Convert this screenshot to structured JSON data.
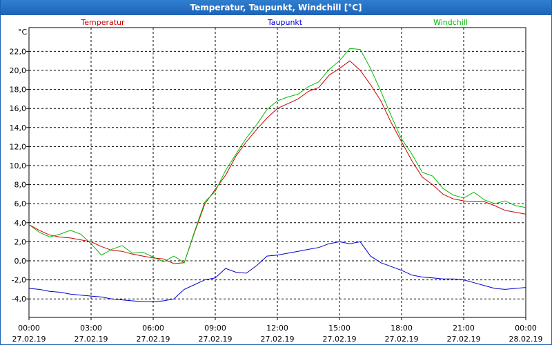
{
  "window": {
    "title": "Temperatur, Taupunkt, Windchill [°C]"
  },
  "chart_data": {
    "type": "line",
    "title": "Temperatur, Taupunkt, Windchill [°C]",
    "ylabel": "°C",
    "ylim": [
      -6,
      24
    ],
    "y_ticks": [
      "22,0",
      "20,0",
      "18,0",
      "16,0",
      "14,0",
      "12,0",
      "10,0",
      "8,0",
      "6,0",
      "4,0",
      "2,0",
      "0,0",
      "-2,0",
      "-4,0"
    ],
    "x_ticks": [
      {
        "time": "00:00",
        "date": "27.02.19"
      },
      {
        "time": "03:00",
        "date": "27.02.19"
      },
      {
        "time": "06:00",
        "date": "27.02.19"
      },
      {
        "time": "09:00",
        "date": "27.02.19"
      },
      {
        "time": "12:00",
        "date": "27.02.19"
      },
      {
        "time": "15:00",
        "date": "27.02.19"
      },
      {
        "time": "18:00",
        "date": "27.02.19"
      },
      {
        "time": "21:00",
        "date": "27.02.19"
      },
      {
        "time": "00:00",
        "date": "28.02.19"
      }
    ],
    "grid": true,
    "x_hours": [
      0,
      0.5,
      1,
      1.5,
      2,
      2.5,
      3,
      3.5,
      4,
      4.5,
      5,
      5.5,
      6,
      6.5,
      7,
      7.5,
      8,
      8.5,
      9,
      9.5,
      10,
      10.5,
      11,
      11.5,
      12,
      12.5,
      13,
      13.5,
      14,
      14.5,
      15,
      15.5,
      16,
      16.5,
      17,
      17.5,
      18,
      18.5,
      19,
      19.5,
      20,
      20.5,
      21,
      21.5,
      22,
      22.5,
      23,
      23.5,
      24
    ],
    "series": [
      {
        "name": "Temperatur",
        "color": "#cc0000",
        "values": [
          3.8,
          3.2,
          2.7,
          2.5,
          2.4,
          2.2,
          2.0,
          1.5,
          1.1,
          1.0,
          0.7,
          0.5,
          0.3,
          0.2,
          -0.3,
          -0.2,
          3.0,
          6.0,
          7.5,
          9.0,
          11.0,
          12.5,
          13.8,
          15.0,
          16.0,
          16.5,
          17.0,
          17.8,
          18.2,
          19.5,
          20.2,
          21.0,
          20.0,
          18.5,
          16.8,
          14.5,
          12.5,
          10.5,
          8.8,
          8.0,
          7.0,
          6.5,
          6.3,
          6.2,
          6.2,
          5.8,
          5.3,
          5.1,
          4.9
        ]
      },
      {
        "name": "Taupunkt",
        "color": "#0000cc",
        "values": [
          -2.9,
          -3.0,
          -3.2,
          -3.3,
          -3.5,
          -3.6,
          -3.7,
          -3.8,
          -4.0,
          -4.1,
          -4.2,
          -4.3,
          -4.3,
          -4.2,
          -4.0,
          -3.0,
          -2.5,
          -2.0,
          -1.8,
          -0.8,
          -1.2,
          -1.3,
          -0.5,
          0.5,
          0.6,
          0.8,
          1.0,
          1.2,
          1.4,
          1.8,
          2.0,
          1.8,
          2.0,
          0.5,
          -0.2,
          -0.6,
          -1.0,
          -1.5,
          -1.7,
          -1.8,
          -1.9,
          -1.9,
          -2.0,
          -2.3,
          -2.6,
          -2.9,
          -3.0,
          -2.9,
          -2.8
        ]
      },
      {
        "name": "Windchill",
        "color": "#00bb00",
        "values": [
          3.8,
          3.0,
          2.5,
          2.8,
          3.2,
          2.8,
          1.8,
          0.6,
          1.2,
          1.6,
          0.8,
          0.9,
          0.4,
          -0.1,
          0.5,
          -0.2,
          3.1,
          6.2,
          7.3,
          9.5,
          11.2,
          12.9,
          14.3,
          15.9,
          16.8,
          17.2,
          17.5,
          18.3,
          18.8,
          20.1,
          21.0,
          22.3,
          22.2,
          20.2,
          17.8,
          15.2,
          12.8,
          11.2,
          9.3,
          8.9,
          7.6,
          6.9,
          6.6,
          7.2,
          6.4,
          6.0,
          6.3,
          5.8,
          5.6
        ]
      }
    ]
  }
}
